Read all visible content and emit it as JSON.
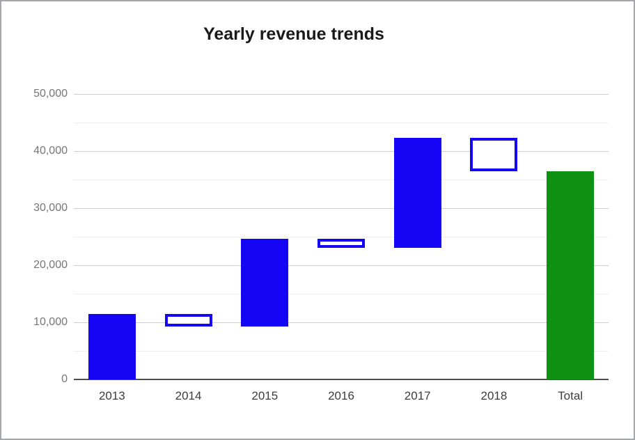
{
  "window": {
    "background": "#ffffff",
    "border_color": "#a6a6ad"
  },
  "chart_data": {
    "type": "bar",
    "subtype": "waterfall",
    "title": "Yearly revenue trends",
    "xlabel": "",
    "ylabel": "",
    "legend": "none",
    "grid": true,
    "categories": [
      "2013",
      "2014",
      "2015",
      "2016",
      "2017",
      "2018",
      "Total"
    ],
    "bars": [
      {
        "category": "2013",
        "low": 0,
        "high": 11500,
        "kind": "rise"
      },
      {
        "category": "2014",
        "low": 9300,
        "high": 11500,
        "kind": "fall"
      },
      {
        "category": "2015",
        "low": 9300,
        "high": 24600,
        "kind": "rise"
      },
      {
        "category": "2016",
        "low": 23000,
        "high": 24600,
        "kind": "fall"
      },
      {
        "category": "2017",
        "low": 23000,
        "high": 42300,
        "kind": "rise"
      },
      {
        "category": "2018",
        "low": 36500,
        "high": 42300,
        "kind": "fall"
      },
      {
        "category": "Total",
        "low": 0,
        "high": 36500,
        "kind": "total"
      }
    ],
    "ylim": [
      0,
      50000
    ],
    "y_major_ticks": [
      0,
      10000,
      20000,
      30000,
      40000,
      50000
    ],
    "y_tick_labels": [
      "0",
      "10,000",
      "20,000",
      "30,000",
      "40,000",
      "50,000"
    ],
    "y_minor_ticks": [
      5000,
      15000,
      25000,
      35000,
      45000
    ],
    "colors": {
      "rise_fill": "#1505f5",
      "fall_stroke": "#1505f5",
      "fall_fill": "#ffffff",
      "total_fill": "#0f9212",
      "major_grid": "#cfcfcf",
      "minor_grid": "#eeeeee",
      "baseline": "#4d4d4d",
      "y_label": "#757575",
      "x_label": "#3c3c3c",
      "title": "#1a1a1a"
    }
  }
}
